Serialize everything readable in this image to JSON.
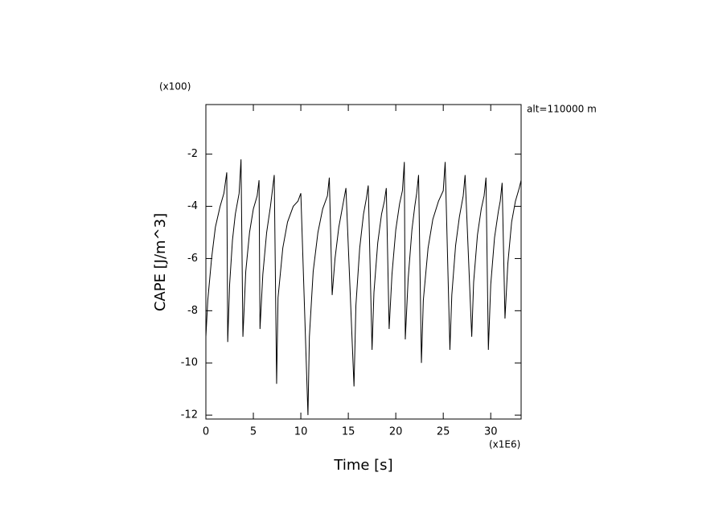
{
  "chart_data": {
    "type": "line",
    "x_unit_label": "(x1E6)",
    "y_unit_label": "(x100)",
    "annotation": "alt=110000 m",
    "xlabel": "Time [s]",
    "ylabel": "CAPE [J/m^3]",
    "xlim": [
      0,
      33.2
    ],
    "ylim": [
      -12.15,
      -0.1
    ],
    "xticks": [
      0,
      5,
      10,
      15,
      20,
      25,
      30
    ],
    "yticks": [
      -12,
      -10,
      -8,
      -6,
      -4,
      -2
    ],
    "series": [
      {
        "color": "#000000",
        "x": [
          0,
          0.2,
          0.6,
          1.0,
          1.5,
          1.9,
          2.2,
          2.3,
          2.5,
          2.8,
          3.1,
          3.5,
          3.7,
          3.9,
          4.2,
          4.6,
          5.0,
          5.4,
          5.6,
          5.7,
          6.0,
          6.4,
          6.8,
          7.0,
          7.2,
          7.45,
          7.6,
          8.1,
          8.6,
          9.2,
          9.7,
          10.0,
          10.75,
          10.9,
          11.3,
          11.8,
          12.3,
          12.8,
          13.0,
          13.3,
          13.6,
          14.0,
          14.4,
          14.75,
          15.6,
          15.8,
          16.2,
          16.6,
          16.9,
          17.1,
          17.5,
          17.7,
          18.1,
          18.5,
          18.8,
          19.0,
          19.3,
          19.6,
          20.0,
          20.4,
          20.7,
          20.9,
          21.0,
          21.3,
          21.7,
          22.0,
          22.2,
          22.4,
          22.7,
          22.9,
          23.4,
          23.9,
          24.5,
          25.0,
          25.2,
          25.7,
          25.9,
          26.3,
          26.7,
          27.1,
          27.3,
          28.0,
          28.2,
          28.6,
          29.0,
          29.3,
          29.5,
          29.75,
          30.0,
          30.4,
          30.8,
          31.0,
          31.2,
          31.5,
          31.8,
          32.2,
          32.6,
          33.0,
          33.2
        ],
        "values": [
          -9.0,
          -7.6,
          -6.0,
          -4.8,
          -4.0,
          -3.5,
          -2.7,
          -9.2,
          -7.0,
          -5.3,
          -4.3,
          -3.5,
          -2.2,
          -9.0,
          -6.5,
          -5.0,
          -4.1,
          -3.6,
          -3.0,
          -8.7,
          -6.6,
          -5.0,
          -4.0,
          -3.4,
          -2.8,
          -10.8,
          -7.5,
          -5.6,
          -4.6,
          -4.0,
          -3.8,
          -3.5,
          -12.0,
          -9.0,
          -6.5,
          -5.0,
          -4.1,
          -3.6,
          -2.9,
          -7.4,
          -6.0,
          -4.8,
          -4.0,
          -3.3,
          -10.9,
          -7.8,
          -5.6,
          -4.3,
          -3.7,
          -3.2,
          -9.5,
          -7.3,
          -5.4,
          -4.3,
          -3.8,
          -3.3,
          -8.7,
          -6.6,
          -4.9,
          -3.9,
          -3.4,
          -2.3,
          -9.1,
          -6.8,
          -4.9,
          -4.0,
          -3.5,
          -2.8,
          -10.0,
          -7.6,
          -5.6,
          -4.5,
          -3.8,
          -3.4,
          -2.3,
          -9.5,
          -7.4,
          -5.5,
          -4.4,
          -3.6,
          -2.8,
          -9.0,
          -6.9,
          -5.1,
          -4.1,
          -3.6,
          -2.9,
          -9.5,
          -7.0,
          -5.2,
          -4.2,
          -3.8,
          -3.1,
          -8.3,
          -6.2,
          -4.6,
          -3.8,
          -3.3,
          -3.0
        ]
      }
    ]
  }
}
